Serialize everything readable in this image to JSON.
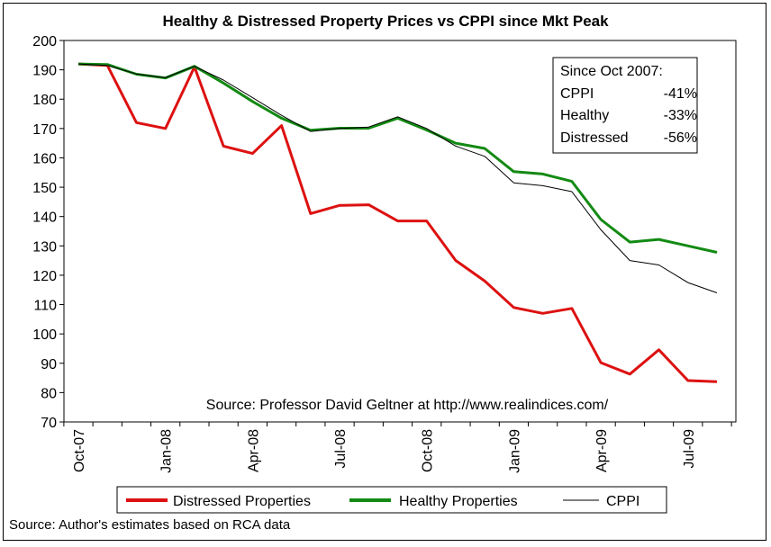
{
  "chart_data": {
    "type": "line",
    "title": "Healthy & Distressed Property Prices vs CPPI since Mkt Peak",
    "xlabel": "",
    "ylabel": "",
    "ylim": [
      70,
      200
    ],
    "yticks": [
      70,
      80,
      90,
      100,
      110,
      120,
      130,
      140,
      150,
      160,
      170,
      180,
      190,
      200
    ],
    "x_tick_labels": [
      "Oct-07",
      "Jan-08",
      "Apr-08",
      "Jul-08",
      "Oct-08",
      "Jan-09",
      "Apr-09",
      "Jul-09"
    ],
    "x": [
      "Oct-07",
      "Nov-07",
      "Dec-07",
      "Jan-08",
      "Feb-08",
      "Mar-08",
      "Apr-08",
      "May-08",
      "Jun-08",
      "Jul-08",
      "Aug-08",
      "Sep-08",
      "Oct-08",
      "Nov-08",
      "Dec-08",
      "Jan-09",
      "Feb-09",
      "Mar-09",
      "Apr-09",
      "May-09",
      "Jun-09",
      "Jul-09",
      "Aug-09"
    ],
    "grid": false,
    "series": [
      {
        "name": "Distressed Properties",
        "color": "#dd1111",
        "values": [
          192,
          191.5,
          172,
          170,
          191,
          164,
          161.5,
          171,
          141,
          143.8,
          144,
          138.5,
          138.5,
          125,
          118,
          109,
          107,
          108.7,
          90.2,
          86.3,
          94.6,
          84.1,
          83.7
        ]
      },
      {
        "name": "Healthy Properties",
        "color": "#138a13",
        "values": [
          192,
          191.8,
          188.5,
          187.2,
          191.2,
          185.5,
          179.2,
          173.5,
          169.4,
          170.1,
          170.1,
          173.5,
          169.5,
          165,
          163.2,
          155.3,
          154.5,
          152,
          139,
          131.3,
          132.2,
          130,
          127.8
        ]
      },
      {
        "name": "CPPI",
        "color": "#000000",
        "values": [
          192,
          191.5,
          188.6,
          187.3,
          191.2,
          186.5,
          180.5,
          174.5,
          169,
          170,
          170.5,
          174,
          170,
          164,
          160.5,
          151.5,
          150.5,
          148.5,
          135.5,
          125,
          123.5,
          117.5,
          114
        ]
      }
    ],
    "annotations": {
      "box_title": "Since Oct 2007:",
      "box_rows": [
        {
          "label": "CPPI",
          "value": "-41%"
        },
        {
          "label": "Healthy",
          "value": "-33%"
        },
        {
          "label": "Distressed",
          "value": "-56%"
        }
      ],
      "source_in_plot": "Source: Professor David Geltner at http://www.realindices.com/"
    },
    "legend_position": "bottom"
  },
  "footer_source": "Source: Author's estimates based on RCA data"
}
